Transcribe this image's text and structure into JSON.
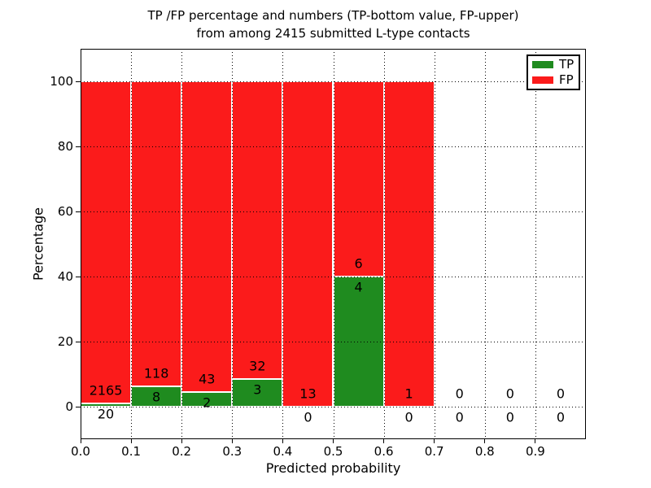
{
  "title": {
    "line1": "TP /FP percentage and numbers (TP-bottom value, FP-upper)",
    "line2": "from among 2415 submitted L-type contacts"
  },
  "axes": {
    "xlabel": "Predicted probability",
    "ylabel": "Percentage"
  },
  "legend": {
    "position": "upper right",
    "items": [
      {
        "label": "TP",
        "color": "#1f8b1f"
      },
      {
        "label": "FP",
        "color": "#fb1b1b"
      }
    ]
  },
  "chart_data": {
    "type": "bar",
    "stacked": true,
    "title": "TP /FP percentage and numbers (TP-bottom value, FP-upper) from among 2415 submitted L-type contacts",
    "xlabel": "Predicted probability",
    "ylabel": "Percentage",
    "total_contacts": 2415,
    "bins": [
      "0.0-0.1",
      "0.1-0.2",
      "0.2-0.3",
      "0.3-0.4",
      "0.4-0.5",
      "0.5-0.6",
      "0.6-0.7",
      "0.7-0.8",
      "0.8-0.9",
      "0.9-1.0"
    ],
    "series": [
      {
        "name": "TP",
        "color": "#1f8b1f",
        "counts": [
          20,
          8,
          2,
          3,
          0,
          4,
          0,
          0,
          0,
          0
        ]
      },
      {
        "name": "FP",
        "color": "#fb1b1b",
        "counts": [
          2165,
          118,
          43,
          32,
          13,
          6,
          1,
          0,
          0,
          0
        ]
      }
    ],
    "tp_percent_height": [
      0.92,
      6.35,
      4.44,
      8.57,
      0.0,
      40.0,
      0.0,
      null,
      null,
      null
    ],
    "bar_labels": {
      "fp_upper": [
        "2165",
        "118",
        "43",
        "32",
        "13",
        "6",
        "1",
        "0",
        "0",
        "0"
      ],
      "tp_lower": [
        "20",
        "8",
        "2",
        "3",
        "0",
        "4",
        "0",
        "0",
        "0",
        "0"
      ]
    },
    "xticks": [
      "0.0",
      "0.1",
      "0.2",
      "0.3",
      "0.4",
      "0.5",
      "0.6",
      "0.7",
      "0.8",
      "0.9"
    ],
    "yticks": [
      0,
      20,
      40,
      60,
      80,
      100
    ],
    "xlim": [
      0.0,
      1.0
    ],
    "ylim": [
      -10,
      110
    ],
    "grid": true
  }
}
